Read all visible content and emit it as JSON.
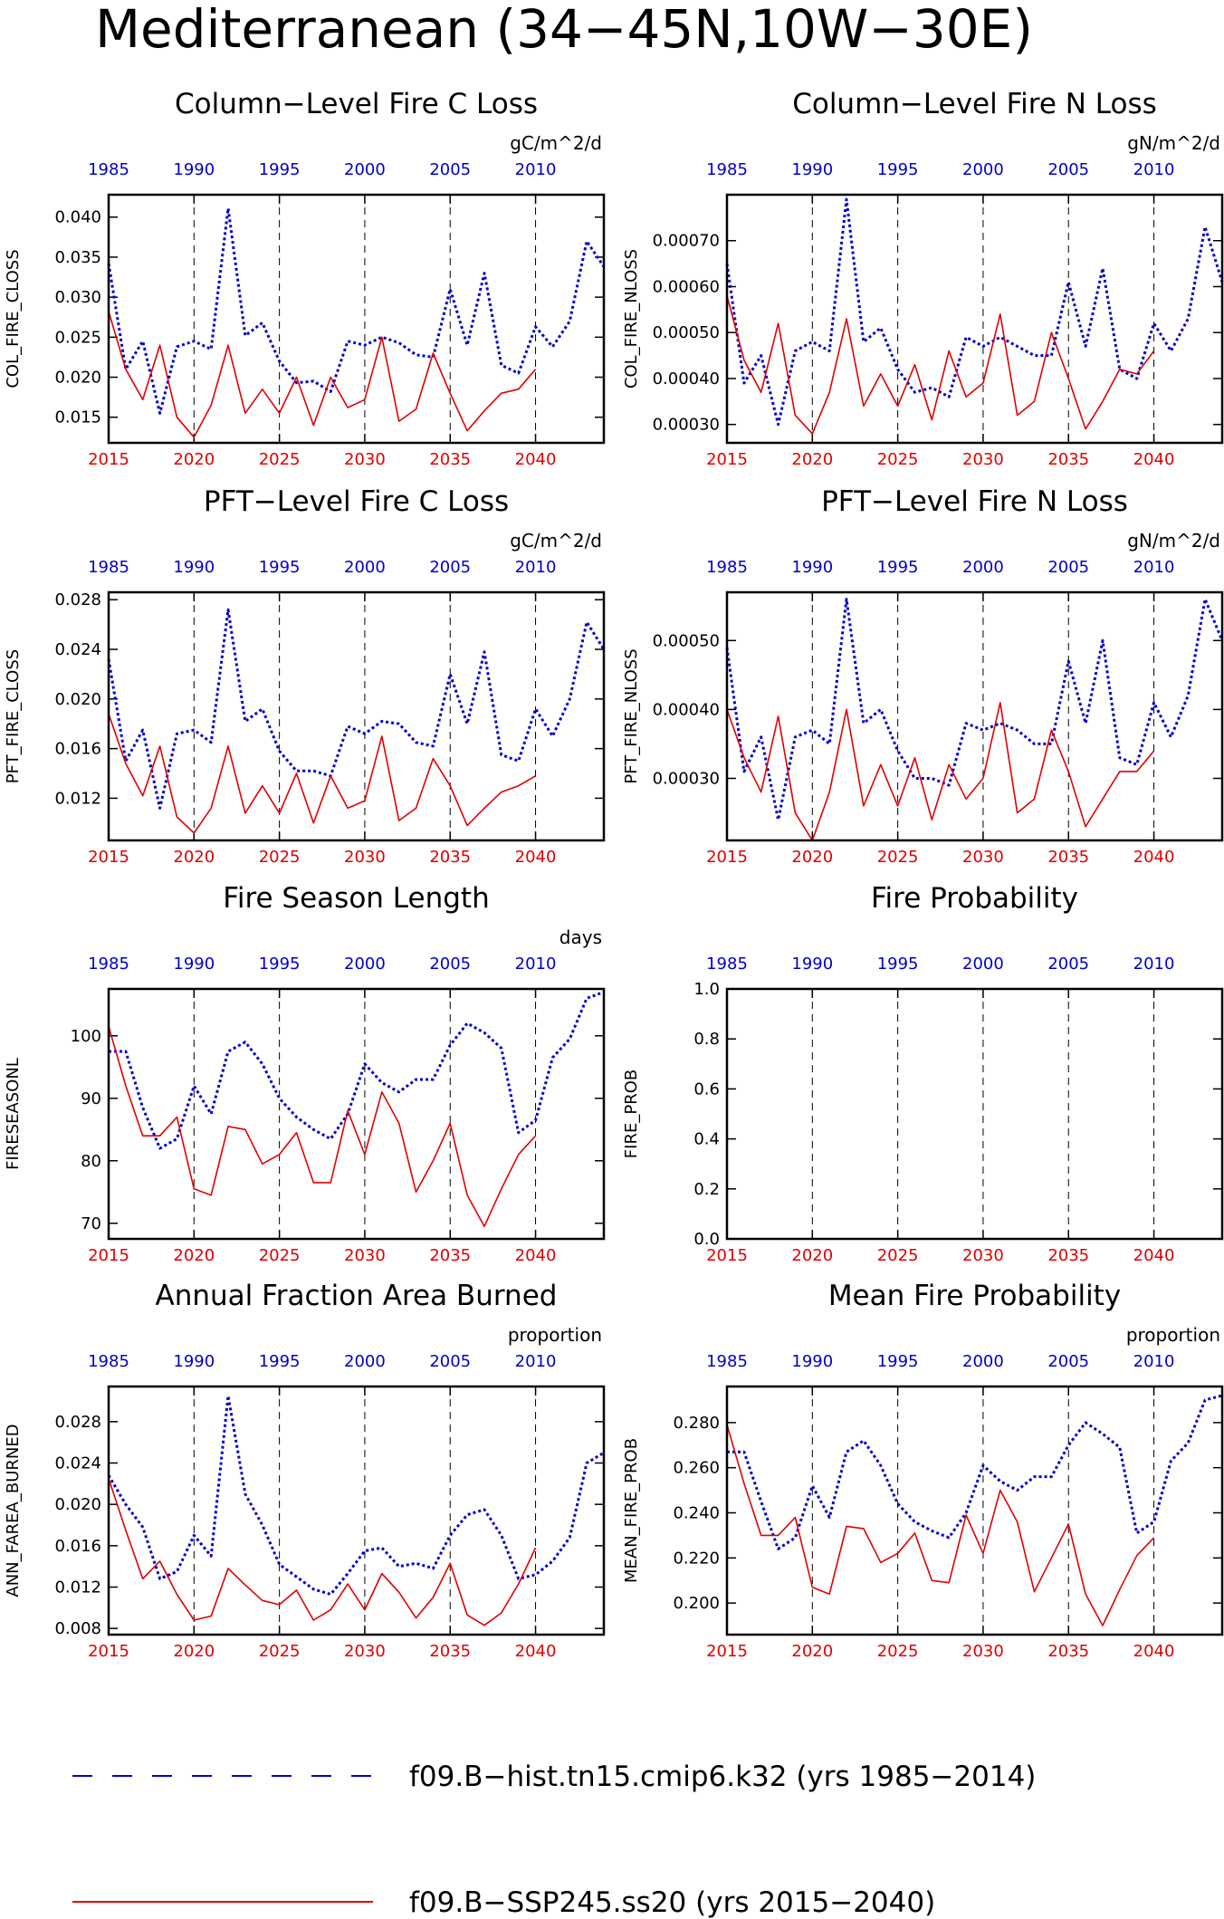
{
  "page_title": "Mediterranean (34−45N,10W−30E)",
  "legend": {
    "hist_label": "f09.B−hist.tn15.cmip6.k32 (yrs 1985−2014)",
    "ssp_label": "f09.B−SSP245.ss20 (yrs 2015−2040)"
  },
  "colors": {
    "hist": "#0000cc",
    "ssp": "#e00000",
    "axis": "#000000",
    "grid": "#000000"
  },
  "bottom_axis": {
    "ticks": [
      2015,
      2020,
      2025,
      2030,
      2035,
      2040
    ],
    "color": "red"
  },
  "top_axis": {
    "ticks": [
      1985,
      1990,
      1995,
      2000,
      2005,
      2010
    ],
    "color": "blue"
  },
  "chart_data": [
    {
      "type": "line",
      "title": "Column−Level Fire C Loss",
      "ylabel": "COL_FIRE_CLOSS",
      "unit": "gC/m^2/d",
      "ylim": [
        0.0118,
        0.0428
      ],
      "yticks": [
        "0.015",
        "0.020",
        "0.025",
        "0.030",
        "0.035",
        "0.040"
      ],
      "series": [
        {
          "name": "f09.B−hist.tn15.cmip6.k32 (yrs 1985−2014)",
          "style": "dotted",
          "x_start": 1985,
          "values": [
            0.0342,
            0.021,
            0.0245,
            0.0155,
            0.0238,
            0.0245,
            0.0235,
            0.0411,
            0.0252,
            0.0268,
            0.022,
            0.0193,
            0.0195,
            0.0182,
            0.0245,
            0.024,
            0.025,
            0.0243,
            0.0228,
            0.0225,
            0.031,
            0.024,
            0.033,
            0.0215,
            0.0205,
            0.0263,
            0.0238,
            0.027,
            0.037,
            0.0338
          ]
        },
        {
          "name": "f09.B−SSP245.ss20 (yrs 2015−2040)",
          "style": "solid",
          "x_start": 2015,
          "values": [
            0.0282,
            0.021,
            0.0172,
            0.024,
            0.015,
            0.0125,
            0.0165,
            0.024,
            0.0155,
            0.0185,
            0.0155,
            0.02,
            0.014,
            0.02,
            0.0162,
            0.0172,
            0.025,
            0.0145,
            0.016,
            0.023,
            0.018,
            0.0133,
            0.0158,
            0.018,
            0.0185,
            0.021
          ]
        }
      ]
    },
    {
      "type": "line",
      "title": "Column−Level Fire N Loss",
      "ylabel": "COL_FIRE_NLOSS",
      "unit": "gN/m^2/d",
      "ylim": [
        0.00026,
        0.0008
      ],
      "yticks": [
        "0.00030",
        "0.00040",
        "0.00050",
        "0.00060",
        "0.00070"
      ],
      "series": [
        {
          "name": "f09.B−hist.tn15.cmip6.k32 (yrs 1985−2014)",
          "style": "dotted",
          "x_start": 1985,
          "values": [
            0.00065,
            0.00039,
            0.00045,
            0.0003,
            0.00046,
            0.00048,
            0.00046,
            0.00079,
            0.00048,
            0.00051,
            0.00042,
            0.00037,
            0.00038,
            0.00036,
            0.00049,
            0.00047,
            0.00049,
            0.00047,
            0.00045,
            0.00045,
            0.00061,
            0.00047,
            0.00064,
            0.00042,
            0.0004,
            0.00052,
            0.00046,
            0.00053,
            0.00073,
            0.00061
          ]
        },
        {
          "name": "f09.B−SSP245.ss20 (yrs 2015−2040)",
          "style": "solid",
          "x_start": 2015,
          "values": [
            0.00058,
            0.00044,
            0.00037,
            0.00052,
            0.00032,
            0.00028,
            0.00037,
            0.00053,
            0.00034,
            0.00041,
            0.00034,
            0.00043,
            0.00031,
            0.00046,
            0.00036,
            0.00039,
            0.00054,
            0.00032,
            0.00035,
            0.0005,
            0.0004,
            0.00029,
            0.00035,
            0.00042,
            0.00041,
            0.00046
          ]
        }
      ]
    },
    {
      "type": "line",
      "title": "PFT−Level Fire C Loss",
      "ylabel": "PFT_FIRE_CLOSS",
      "unit": "gC/m^2/d",
      "ylim": [
        0.0086,
        0.0286
      ],
      "yticks": [
        "0.012",
        "0.016",
        "0.020",
        "0.024",
        "0.028"
      ],
      "series": [
        {
          "name": "f09.B−hist.tn15.cmip6.k32 (yrs 1985−2014)",
          "style": "dotted",
          "x_start": 1985,
          "values": [
            0.0232,
            0.015,
            0.0175,
            0.0112,
            0.0172,
            0.0175,
            0.0165,
            0.0272,
            0.0182,
            0.0192,
            0.0158,
            0.0142,
            0.0142,
            0.0138,
            0.0178,
            0.0172,
            0.0182,
            0.018,
            0.0165,
            0.0162,
            0.022,
            0.018,
            0.0238,
            0.0155,
            0.015,
            0.0192,
            0.017,
            0.02,
            0.0262,
            0.024
          ]
        },
        {
          "name": "f09.B−SSP245.ss20 (yrs 2015−2040)",
          "style": "solid",
          "x_start": 2015,
          "values": [
            0.0188,
            0.0148,
            0.0122,
            0.0162,
            0.0105,
            0.0092,
            0.0112,
            0.0162,
            0.0108,
            0.013,
            0.0108,
            0.014,
            0.01,
            0.0138,
            0.0112,
            0.0118,
            0.017,
            0.0102,
            0.0112,
            0.0152,
            0.013,
            0.0098,
            0.0112,
            0.0125,
            0.013,
            0.0138
          ]
        }
      ]
    },
    {
      "type": "line",
      "title": "PFT−Level Fire N Loss",
      "ylabel": "PFT_FIRE_NLOSS",
      "unit": "gN/m^2/d",
      "ylim": [
        0.00021,
        0.00057
      ],
      "yticks": [
        "0.00030",
        "0.00040",
        "0.00050"
      ],
      "series": [
        {
          "name": "f09.B−hist.tn15.cmip6.k32 (yrs 1985−2014)",
          "style": "dotted",
          "x_start": 1985,
          "values": [
            0.00049,
            0.00031,
            0.00036,
            0.00024,
            0.00036,
            0.00037,
            0.00035,
            0.00056,
            0.00038,
            0.0004,
            0.00034,
            0.0003,
            0.0003,
            0.00029,
            0.00038,
            0.00037,
            0.00038,
            0.00037,
            0.00035,
            0.00035,
            0.00047,
            0.00038,
            0.0005,
            0.00033,
            0.00032,
            0.00041,
            0.00036,
            0.00042,
            0.00056,
            0.0005
          ]
        },
        {
          "name": "f09.B−SSP245.ss20 (yrs 2015−2040)",
          "style": "solid",
          "x_start": 2015,
          "values": [
            0.0004,
            0.00033,
            0.00028,
            0.00039,
            0.00025,
            0.00021,
            0.00028,
            0.0004,
            0.00026,
            0.00032,
            0.00026,
            0.00033,
            0.00024,
            0.00032,
            0.00027,
            0.0003,
            0.00041,
            0.00025,
            0.00027,
            0.00037,
            0.00031,
            0.00023,
            0.00027,
            0.00031,
            0.00031,
            0.00034
          ]
        }
      ]
    },
    {
      "type": "line",
      "title": "Fire Season Length",
      "ylabel": "FIRESEASONL",
      "unit": "days",
      "ylim": [
        67.5,
        107.5
      ],
      "yticks": [
        "70",
        "80",
        "90",
        "100"
      ],
      "series": [
        {
          "name": "f09.B−hist.tn15.cmip6.k32 (yrs 1985−2014)",
          "style": "dotted",
          "x_start": 1985,
          "values": [
            97.5,
            97.5,
            88.5,
            82.0,
            83.5,
            92.0,
            87.5,
            97.5,
            99.0,
            95.5,
            90.0,
            87.0,
            85.0,
            83.5,
            87.5,
            95.5,
            92.5,
            91.0,
            93.0,
            93.0,
            98.5,
            102.0,
            100.5,
            98.0,
            84.5,
            86.5,
            96.5,
            99.5,
            106.0,
            107.0
          ]
        },
        {
          "name": "f09.B−SSP245.ss20 (yrs 2015−2040)",
          "style": "solid",
          "x_start": 2015,
          "values": [
            101.5,
            92.0,
            84.0,
            84.0,
            87.0,
            75.5,
            74.5,
            85.5,
            85.0,
            79.5,
            81.0,
            84.5,
            76.5,
            76.5,
            88.0,
            81.0,
            91.0,
            86.0,
            75.0,
            80.0,
            86.0,
            74.5,
            69.5,
            75.5,
            81.0,
            84.0
          ]
        }
      ]
    },
    {
      "type": "line",
      "title": "Fire Probability",
      "ylabel": "FIRE_PROB",
      "unit": "",
      "ylim": [
        0.0,
        1.0
      ],
      "yticks": [
        "0.0",
        "0.2",
        "0.4",
        "0.6",
        "0.8",
        "1.0"
      ],
      "series": []
    },
    {
      "type": "line",
      "title": "Annual Fraction Area Burned",
      "ylabel": "ANN_FAREA_BURNED",
      "unit": "proportion",
      "ylim": [
        0.0074,
        0.0314
      ],
      "yticks": [
        "0.008",
        "0.012",
        "0.016",
        "0.020",
        "0.024",
        "0.028"
      ],
      "series": [
        {
          "name": "f09.B−hist.tn15.cmip6.k32 (yrs 1985−2014)",
          "style": "dotted",
          "x_start": 1985,
          "values": [
            0.0228,
            0.02,
            0.0178,
            0.0128,
            0.0135,
            0.017,
            0.015,
            0.0305,
            0.021,
            0.018,
            0.0142,
            0.013,
            0.0118,
            0.0113,
            0.0133,
            0.0155,
            0.0158,
            0.014,
            0.0143,
            0.0138,
            0.017,
            0.019,
            0.0195,
            0.017,
            0.0128,
            0.0132,
            0.0145,
            0.0168,
            0.024,
            0.025
          ]
        },
        {
          "name": "f09.B−SSP245.ss20 (yrs 2015−2040)",
          "style": "solid",
          "x_start": 2015,
          "values": [
            0.0225,
            0.0175,
            0.0128,
            0.0145,
            0.0113,
            0.0088,
            0.0092,
            0.0138,
            0.0122,
            0.0107,
            0.0103,
            0.0117,
            0.0088,
            0.0098,
            0.0123,
            0.0098,
            0.0133,
            0.0115,
            0.009,
            0.011,
            0.0143,
            0.0093,
            0.0083,
            0.0095,
            0.0123,
            0.0158
          ]
        }
      ]
    },
    {
      "type": "line",
      "title": "Mean Fire Probability",
      "ylabel": "MEAN_FIRE_PROB",
      "unit": "proportion",
      "ylim": [
        0.186,
        0.296
      ],
      "yticks": [
        "0.200",
        "0.220",
        "0.240",
        "0.260",
        "0.280"
      ],
      "series": [
        {
          "name": "f09.B−hist.tn15.cmip6.k32 (yrs 1985−2014)",
          "style": "dotted",
          "x_start": 1985,
          "values": [
            0.267,
            0.267,
            0.245,
            0.224,
            0.229,
            0.252,
            0.238,
            0.267,
            0.272,
            0.261,
            0.244,
            0.236,
            0.232,
            0.229,
            0.24,
            0.261,
            0.254,
            0.25,
            0.256,
            0.256,
            0.27,
            0.28,
            0.275,
            0.269,
            0.231,
            0.236,
            0.263,
            0.271,
            0.29,
            0.292
          ]
        },
        {
          "name": "f09.B−SSP245.ss20 (yrs 2015−2040)",
          "style": "solid",
          "x_start": 2015,
          "values": [
            0.279,
            0.253,
            0.23,
            0.23,
            0.238,
            0.207,
            0.204,
            0.234,
            0.233,
            0.218,
            0.222,
            0.231,
            0.21,
            0.209,
            0.239,
            0.222,
            0.25,
            0.236,
            0.205,
            0.22,
            0.235,
            0.204,
            0.19,
            0.206,
            0.221,
            0.229
          ]
        }
      ]
    }
  ]
}
